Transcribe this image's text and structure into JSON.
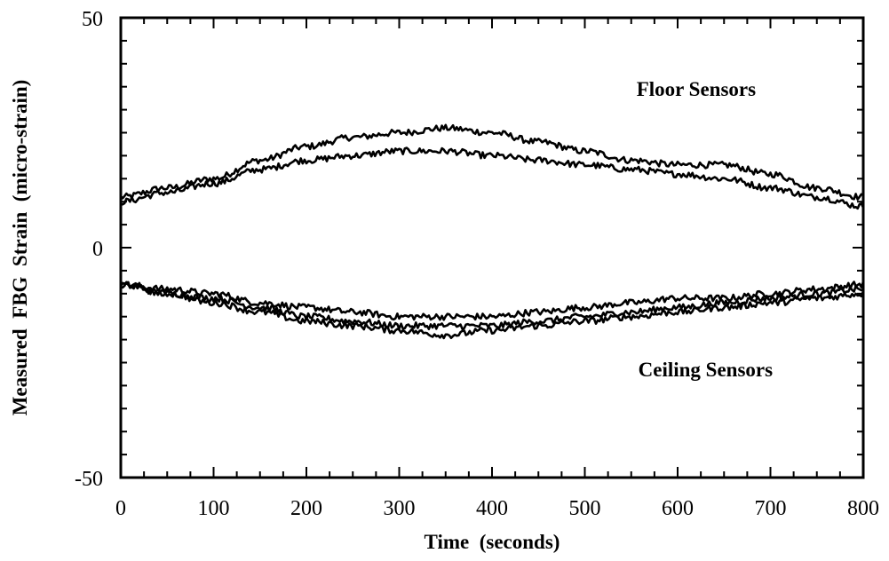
{
  "chart_data": {
    "type": "line",
    "title": "",
    "xlabel": "Time  (seconds)",
    "ylabel": "Measured  FBG  Strain  (micro-strain)",
    "xlim": [
      0,
      800
    ],
    "ylim": [
      -50,
      50
    ],
    "x_ticks": [
      "0",
      "100",
      "200",
      "300",
      "400",
      "500",
      "600",
      "700",
      "800"
    ],
    "y_ticks": [
      "50",
      "0",
      "-50"
    ],
    "grid": false,
    "legend": "none",
    "annotations": [
      {
        "text": "Floor  Sensors",
        "x": 620,
        "y": 33
      },
      {
        "text": "Ceiling  Sensors",
        "x": 630,
        "y": -28
      }
    ],
    "x": [
      0,
      50,
      100,
      150,
      200,
      250,
      300,
      350,
      400,
      450,
      500,
      550,
      600,
      650,
      700,
      750,
      800
    ],
    "series": [
      {
        "values": [
          11,
          13,
          15,
          19,
          22,
          24,
          25,
          26,
          25,
          23,
          21,
          19,
          18,
          18,
          16,
          13,
          11
        ]
      },
      {
        "values": [
          10,
          12,
          14,
          17,
          19,
          20,
          21,
          21,
          20,
          19,
          18,
          17,
          16,
          15,
          13,
          11,
          9
        ]
      },
      {
        "values": [
          -8,
          -9,
          -10,
          -12,
          -13,
          -14,
          -15,
          -15,
          -15,
          -14,
          -13,
          -12,
          -11,
          -11,
          -10,
          -9,
          -8
        ]
      },
      {
        "values": [
          -8,
          -10,
          -11,
          -13,
          -15,
          -16,
          -17,
          -17,
          -17,
          -16,
          -15,
          -14,
          -13,
          -12,
          -11,
          -10,
          -9
        ]
      },
      {
        "values": [
          -8,
          -10,
          -12,
          -14,
          -16,
          -17,
          -18,
          -19,
          -18,
          -17,
          -16,
          -15,
          -14,
          -13,
          -12,
          -11,
          -10
        ]
      }
    ],
    "colors": {
      "line": "#000000",
      "axes": "#000000",
      "background": "#ffffff"
    }
  }
}
